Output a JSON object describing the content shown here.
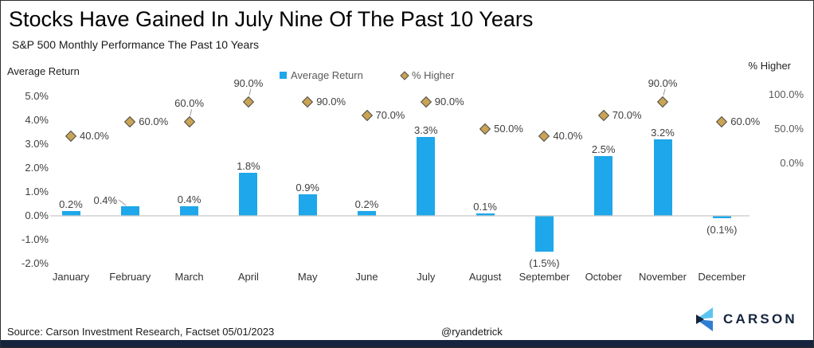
{
  "title": "Stocks Have Gained In July Nine Of The Past 10 Years",
  "subtitle": "S&P 500 Monthly Performance The Past 10 Years",
  "colors": {
    "bar": "#1EA7EA",
    "diamond_fill": "#C9A455",
    "diamond_border": "#4d4d4d",
    "baseline": "#c8c8c8",
    "leader": "#9a9a9a",
    "navy": "#16243E",
    "logo_light_blue": "#5BC5F2",
    "logo_mid_blue": "#2E7ED4",
    "logo_navy": "#13263F"
  },
  "chart_data": {
    "type": "bar",
    "title": "Stocks Have Gained In July Nine Of The Past 10 Years",
    "subtitle": "S&P 500 Monthly Performance The Past 10 Years",
    "categories": [
      "January",
      "February",
      "March",
      "April",
      "May",
      "June",
      "July",
      "August",
      "September",
      "October",
      "November",
      "December"
    ],
    "series": [
      {
        "name": "Average Return",
        "type": "bar",
        "axis": "left",
        "values": [
          0.2,
          0.4,
          0.4,
          1.8,
          0.9,
          0.2,
          3.3,
          0.1,
          -1.5,
          2.5,
          3.2,
          -0.1
        ],
        "labels": [
          "0.2%",
          "0.4%",
          "0.4%",
          "1.8%",
          "0.9%",
          "0.2%",
          "3.3%",
          "0.1%",
          "(1.5%)",
          "2.5%",
          "3.2%",
          "(0.1%)"
        ]
      },
      {
        "name": "% Higher",
        "type": "scatter-diamond",
        "axis": "right",
        "values": [
          40,
          60,
          60,
          90,
          90,
          70,
          90,
          50,
          40,
          70,
          90,
          60
        ],
        "labels": [
          "40.0%",
          "60.0%",
          "60.0%",
          "90.0%",
          "90.0%",
          "70.0%",
          "90.0%",
          "50.0%",
          "40.0%",
          "70.0%",
          "90.0%",
          "60.0%"
        ]
      }
    ],
    "left_axis": {
      "title": "Average Return",
      "ticks": [
        "5.0%",
        "4.0%",
        "3.0%",
        "2.0%",
        "1.0%",
        "0.0%",
        "-1.0%",
        "-2.0%"
      ],
      "tick_values": [
        5,
        4,
        3,
        2,
        1,
        0,
        -1,
        -2
      ],
      "range": [
        -2.0,
        5.0
      ]
    },
    "right_axis": {
      "title": "% Higher",
      "ticks": [
        "100.0%",
        "50.0%",
        "0.0%"
      ],
      "tick_values": [
        100,
        50,
        0
      ]
    },
    "legend": [
      {
        "label": "Average Return",
        "marker": "square"
      },
      {
        "label": "% Higher",
        "marker": "diamond"
      }
    ],
    "label_placement": {
      "avg": [
        "above",
        "left-leader",
        "above",
        "above",
        "above",
        "above",
        "above",
        "above",
        "below",
        "above",
        "above",
        "below"
      ],
      "pct": [
        "right",
        "right",
        "above-leader",
        "above-leader",
        "right",
        "right",
        "right",
        "right",
        "right",
        "right",
        "above-leader",
        "right"
      ]
    },
    "grid": "baseline-only",
    "legend_position": "top-center"
  },
  "footer": {
    "source": "Source: Carson Investment Research, Factset 05/01/2023",
    "handle": "@ryandetrick",
    "logo_text": "CARSON"
  }
}
